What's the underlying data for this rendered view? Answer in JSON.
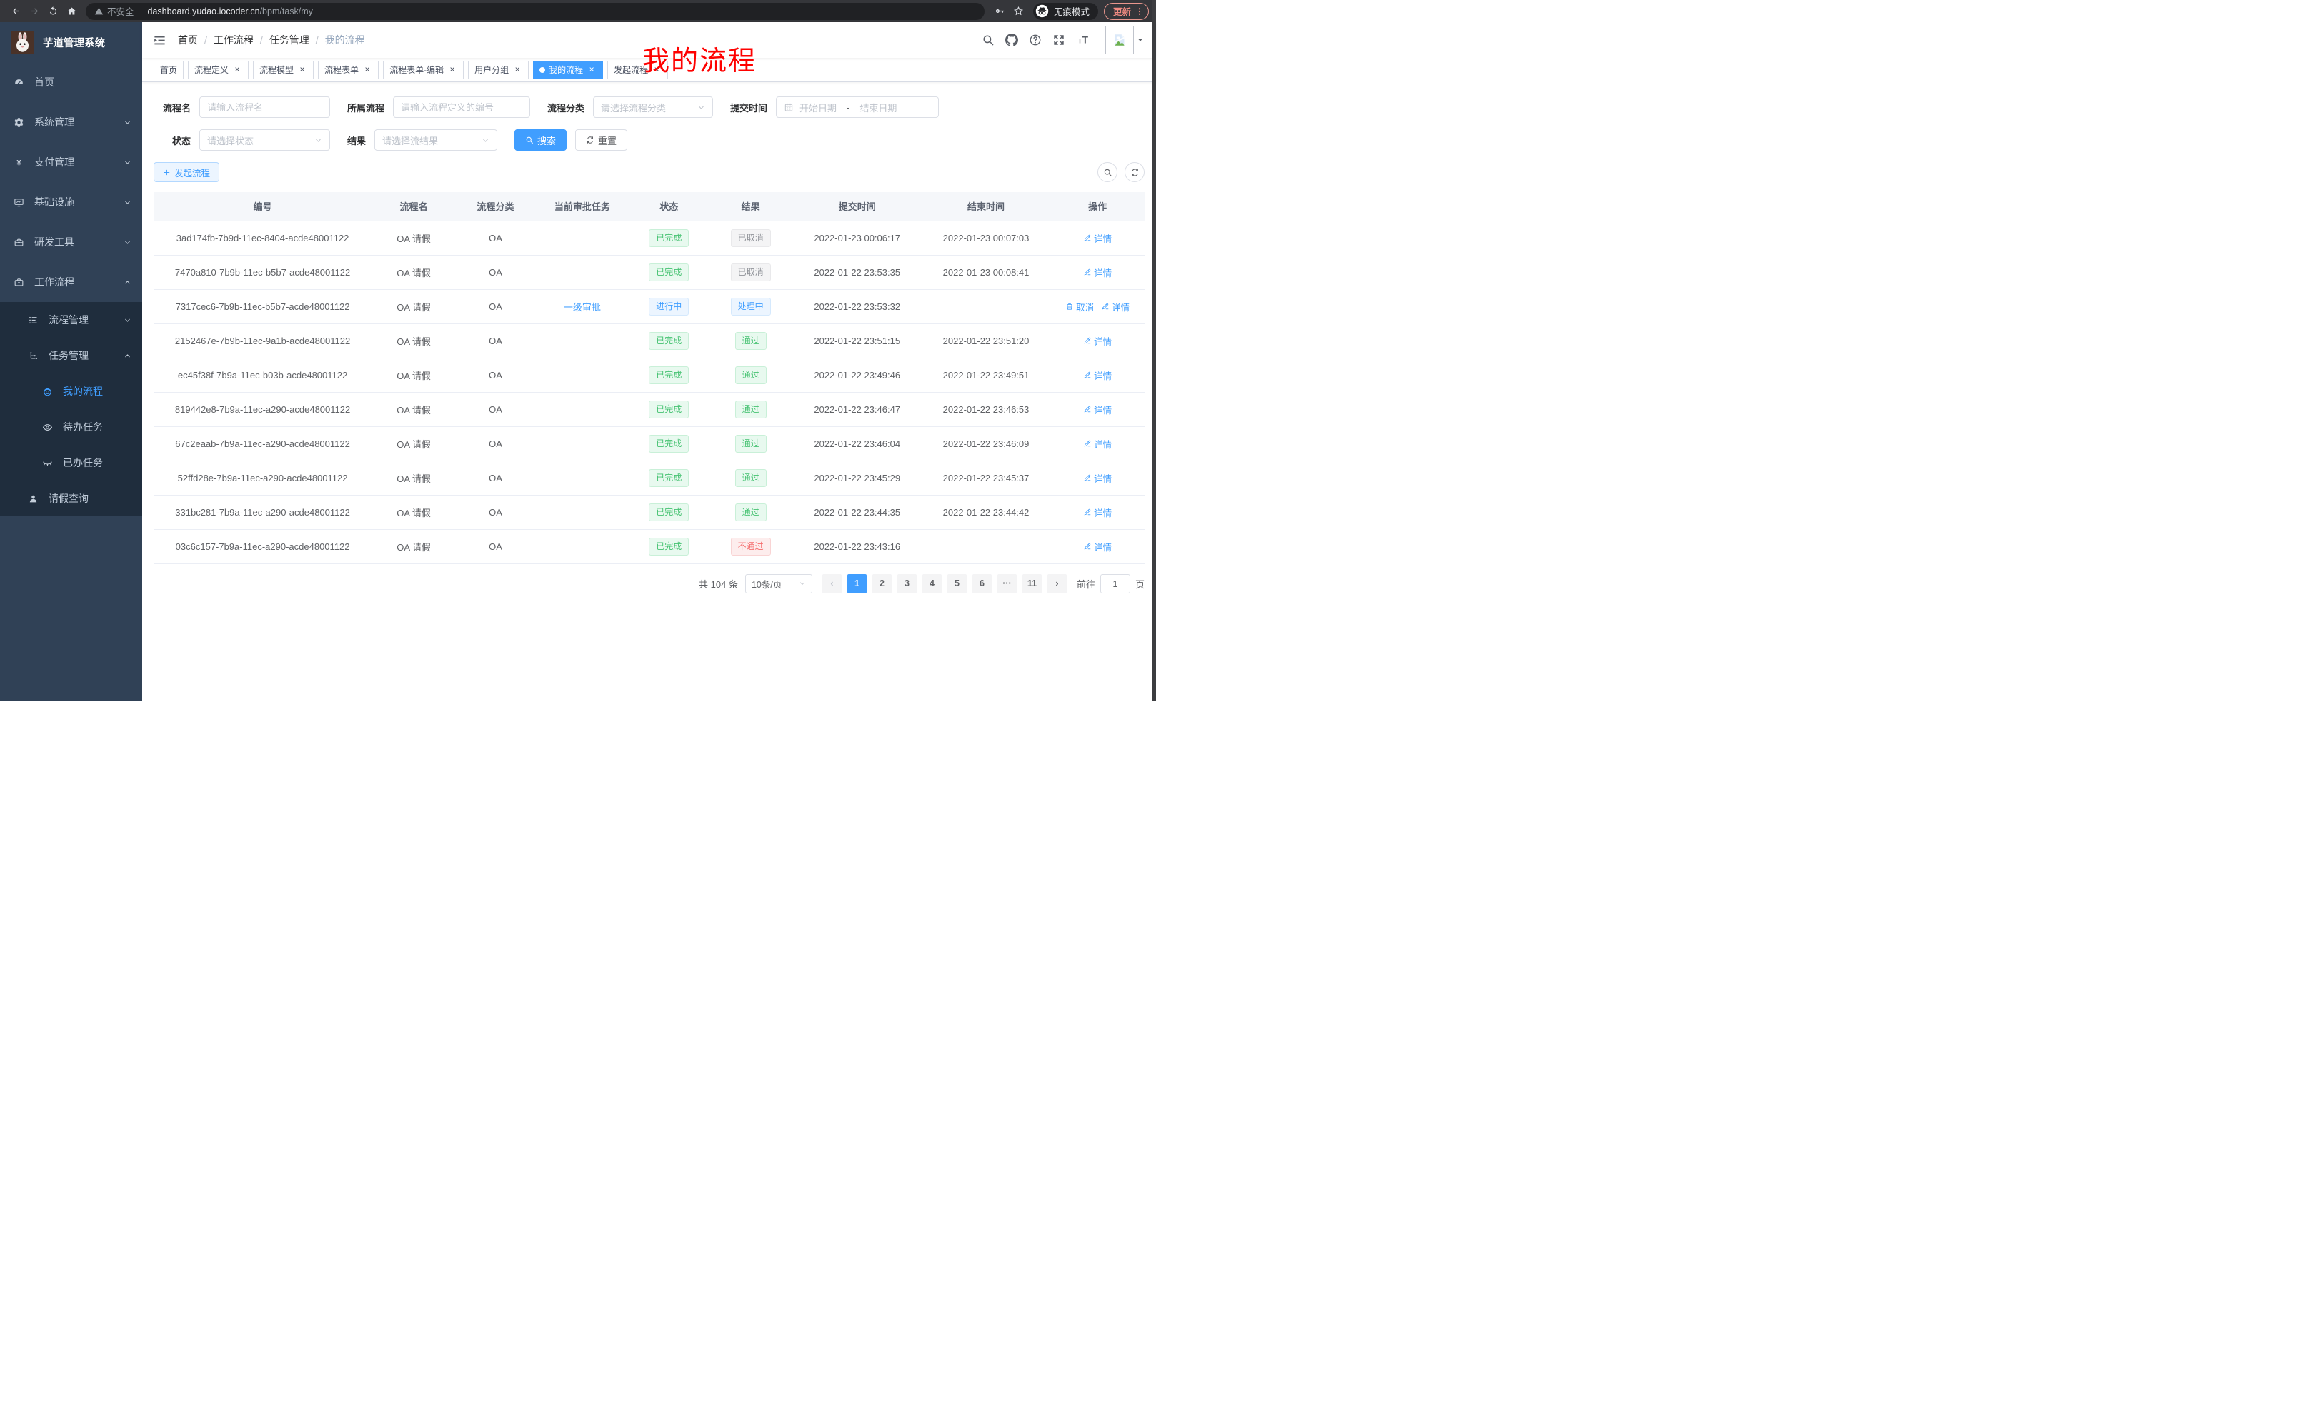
{
  "browser": {
    "secure_label": "不安全",
    "url_host": "dashboard.yudao.iocoder.cn",
    "url_path": "/bpm/task/my",
    "incognito_label": "无痕模式",
    "update_label": "更新"
  },
  "sidebar": {
    "title": "芋道管理系统",
    "menu": [
      {
        "key": "home",
        "label": "首页",
        "icon": "gauge",
        "level": 0,
        "sub": false,
        "chevron": null,
        "active": false
      },
      {
        "key": "system",
        "label": "系统管理",
        "icon": "gear",
        "level": 0,
        "sub": false,
        "chevron": "down",
        "active": false
      },
      {
        "key": "payment",
        "label": "支付管理",
        "icon": "yen",
        "level": 0,
        "sub": false,
        "chevron": "down",
        "active": false
      },
      {
        "key": "infra",
        "label": "基础设施",
        "icon": "monitor",
        "level": 0,
        "sub": false,
        "chevron": "down",
        "active": false
      },
      {
        "key": "devtools",
        "label": "研发工具",
        "icon": "tool",
        "level": 0,
        "sub": false,
        "chevron": "down",
        "active": false
      },
      {
        "key": "workflow",
        "label": "工作流程",
        "icon": "brief",
        "level": 0,
        "sub": false,
        "chevron": "up",
        "active": false
      },
      {
        "key": "process-mgmt",
        "label": "流程管理",
        "icon": "list",
        "level": 1,
        "sub": true,
        "chevron": "down",
        "active": false
      },
      {
        "key": "task-mgmt",
        "label": "任务管理",
        "icon": "tree",
        "level": 1,
        "sub": true,
        "chevron": "up",
        "active": false
      },
      {
        "key": "my-process",
        "label": "我的流程",
        "icon": "robot",
        "level": 2,
        "sub": true,
        "chevron": null,
        "active": true
      },
      {
        "key": "todo-task",
        "label": "待办任务",
        "icon": "eye",
        "level": 2,
        "sub": true,
        "chevron": null,
        "active": false
      },
      {
        "key": "done-task",
        "label": "已办任务",
        "icon": "eyeoff",
        "level": 2,
        "sub": true,
        "chevron": null,
        "active": false
      },
      {
        "key": "leave-query",
        "label": "请假查询",
        "icon": "user",
        "level": 1,
        "sub": true,
        "chevron": null,
        "active": false
      }
    ]
  },
  "navbar": {
    "breadcrumb": [
      "首页",
      "工作流程",
      "任务管理",
      "我的流程"
    ],
    "annotation": "我的流程"
  },
  "tabs": [
    {
      "key": "home",
      "label": "首页",
      "closable": false,
      "active": false
    },
    {
      "key": "process-def",
      "label": "流程定义",
      "closable": true,
      "active": false
    },
    {
      "key": "process-model",
      "label": "流程模型",
      "closable": true,
      "active": false
    },
    {
      "key": "process-form",
      "label": "流程表单",
      "closable": true,
      "active": false
    },
    {
      "key": "form-edit",
      "label": "流程表单-编辑",
      "closable": true,
      "active": false
    },
    {
      "key": "user-group",
      "label": "用户分组",
      "closable": true,
      "active": false
    },
    {
      "key": "my-process",
      "label": "我的流程",
      "closable": true,
      "active": true
    },
    {
      "key": "start-process",
      "label": "发起流程",
      "closable": true,
      "active": false
    }
  ],
  "filters": {
    "name_label": "流程名",
    "name_placeholder": "请输入流程名",
    "def_label": "所属流程",
    "def_placeholder": "请输入流程定义的编号",
    "cat_label": "流程分类",
    "cat_placeholder": "请选择流程分类",
    "time_label": "提交时间",
    "start_placeholder": "开始日期",
    "range_separator": "-",
    "end_placeholder": "结束日期",
    "status_label": "状态",
    "status_placeholder": "请选择状态",
    "result_label": "结果",
    "result_placeholder": "请选择流结果",
    "search_label": "搜索",
    "reset_label": "重置"
  },
  "toolbar": {
    "create_label": "发起流程"
  },
  "table": {
    "columns": [
      {
        "key": "id",
        "label": "编号",
        "w": "22%"
      },
      {
        "key": "name",
        "label": "流程名",
        "w": "8.5%"
      },
      {
        "key": "category",
        "label": "流程分类",
        "w": "8%"
      },
      {
        "key": "task",
        "label": "当前审批任务",
        "w": "9.5%"
      },
      {
        "key": "status",
        "label": "状态",
        "w": "8%"
      },
      {
        "key": "result",
        "label": "结果",
        "w": "8.5%"
      },
      {
        "key": "submit",
        "label": "提交时间",
        "w": "13%"
      },
      {
        "key": "end",
        "label": "结束时间",
        "w": "13%"
      },
      {
        "key": "actions",
        "label": "操作",
        "w": "9.5%"
      }
    ],
    "rows": [
      {
        "id": "3ad174fb-7b9d-11ec-8404-acde48001122",
        "name": "OA 请假",
        "category": "OA",
        "task": "",
        "status": {
          "text": "已完成",
          "type": "success"
        },
        "result": {
          "text": "已取消",
          "type": "info"
        },
        "submit_time": "2022-01-23 00:06:17",
        "end_time": "2022-01-23 00:07:03",
        "actions": [
          {
            "key": "detail",
            "label": "详情",
            "icon": "pen"
          }
        ]
      },
      {
        "id": "7470a810-7b9b-11ec-b5b7-acde48001122",
        "name": "OA 请假",
        "category": "OA",
        "task": "",
        "status": {
          "text": "已完成",
          "type": "success"
        },
        "result": {
          "text": "已取消",
          "type": "info"
        },
        "submit_time": "2022-01-22 23:53:35",
        "end_time": "2022-01-23 00:08:41",
        "actions": [
          {
            "key": "detail",
            "label": "详情",
            "icon": "pen"
          }
        ]
      },
      {
        "id": "7317cec6-7b9b-11ec-b5b7-acde48001122",
        "name": "OA 请假",
        "category": "OA",
        "task": "一级审批",
        "status": {
          "text": "进行中",
          "type": "primary"
        },
        "result": {
          "text": "处理中",
          "type": "primary"
        },
        "submit_time": "2022-01-22 23:53:32",
        "end_time": "",
        "actions": [
          {
            "key": "cancel",
            "label": "取消",
            "icon": "trash"
          },
          {
            "key": "detail",
            "label": "详情",
            "icon": "pen"
          }
        ]
      },
      {
        "id": "2152467e-7b9b-11ec-9a1b-acde48001122",
        "name": "OA 请假",
        "category": "OA",
        "task": "",
        "status": {
          "text": "已完成",
          "type": "success"
        },
        "result": {
          "text": "通过",
          "type": "success"
        },
        "submit_time": "2022-01-22 23:51:15",
        "end_time": "2022-01-22 23:51:20",
        "actions": [
          {
            "key": "detail",
            "label": "详情",
            "icon": "pen"
          }
        ]
      },
      {
        "id": "ec45f38f-7b9a-11ec-b03b-acde48001122",
        "name": "OA 请假",
        "category": "OA",
        "task": "",
        "status": {
          "text": "已完成",
          "type": "success"
        },
        "result": {
          "text": "通过",
          "type": "success"
        },
        "submit_time": "2022-01-22 23:49:46",
        "end_time": "2022-01-22 23:49:51",
        "actions": [
          {
            "key": "detail",
            "label": "详情",
            "icon": "pen"
          }
        ]
      },
      {
        "id": "819442e8-7b9a-11ec-a290-acde48001122",
        "name": "OA 请假",
        "category": "OA",
        "task": "",
        "status": {
          "text": "已完成",
          "type": "success"
        },
        "result": {
          "text": "通过",
          "type": "success"
        },
        "submit_time": "2022-01-22 23:46:47",
        "end_time": "2022-01-22 23:46:53",
        "actions": [
          {
            "key": "detail",
            "label": "详情",
            "icon": "pen"
          }
        ]
      },
      {
        "id": "67c2eaab-7b9a-11ec-a290-acde48001122",
        "name": "OA 请假",
        "category": "OA",
        "task": "",
        "status": {
          "text": "已完成",
          "type": "success"
        },
        "result": {
          "text": "通过",
          "type": "success"
        },
        "submit_time": "2022-01-22 23:46:04",
        "end_time": "2022-01-22 23:46:09",
        "actions": [
          {
            "key": "detail",
            "label": "详情",
            "icon": "pen"
          }
        ]
      },
      {
        "id": "52ffd28e-7b9a-11ec-a290-acde48001122",
        "name": "OA 请假",
        "category": "OA",
        "task": "",
        "status": {
          "text": "已完成",
          "type": "success"
        },
        "result": {
          "text": "通过",
          "type": "success"
        },
        "submit_time": "2022-01-22 23:45:29",
        "end_time": "2022-01-22 23:45:37",
        "actions": [
          {
            "key": "detail",
            "label": "详情",
            "icon": "pen"
          }
        ]
      },
      {
        "id": "331bc281-7b9a-11ec-a290-acde48001122",
        "name": "OA 请假",
        "category": "OA",
        "task": "",
        "status": {
          "text": "已完成",
          "type": "success"
        },
        "result": {
          "text": "通过",
          "type": "success"
        },
        "submit_time": "2022-01-22 23:44:35",
        "end_time": "2022-01-22 23:44:42",
        "actions": [
          {
            "key": "detail",
            "label": "详情",
            "icon": "pen"
          }
        ]
      },
      {
        "id": "03c6c157-7b9a-11ec-a290-acde48001122",
        "name": "OA 请假",
        "category": "OA",
        "task": "",
        "status": {
          "text": "已完成",
          "type": "success"
        },
        "result": {
          "text": "不通过",
          "type": "danger"
        },
        "submit_time": "2022-01-22 23:43:16",
        "end_time": "",
        "actions": [
          {
            "key": "detail",
            "label": "详情",
            "icon": "pen"
          }
        ]
      }
    ]
  },
  "pagination": {
    "total_label": "共 104 条",
    "size_label": "10条/页",
    "pages": [
      {
        "key": "prev",
        "label": "‹",
        "state": "disabled"
      },
      {
        "key": "page-1",
        "label": "1",
        "state": "active"
      },
      {
        "key": "page-2",
        "label": "2",
        "state": null
      },
      {
        "key": "page-3",
        "label": "3",
        "state": null
      },
      {
        "key": "page-4",
        "label": "4",
        "state": null
      },
      {
        "key": "page-5",
        "label": "5",
        "state": null
      },
      {
        "key": "page-6",
        "label": "6",
        "state": null
      },
      {
        "key": "ellipsis",
        "label": "···",
        "state": null
      },
      {
        "key": "page-11",
        "label": "11",
        "state": null
      },
      {
        "key": "next",
        "label": "›",
        "state": null
      }
    ],
    "goto_label": "前往",
    "goto_value": "1",
    "goto_unit": "页"
  },
  "colors": {
    "accent": "#409EFF",
    "sidebar_bg": "#304156",
    "submenu_bg": "#1f2d3d",
    "success_text": "#45c271",
    "info_text": "#909399",
    "danger_text": "#f56c6c",
    "annotation_red": "#fe0100",
    "update_red": "#f28b82"
  }
}
